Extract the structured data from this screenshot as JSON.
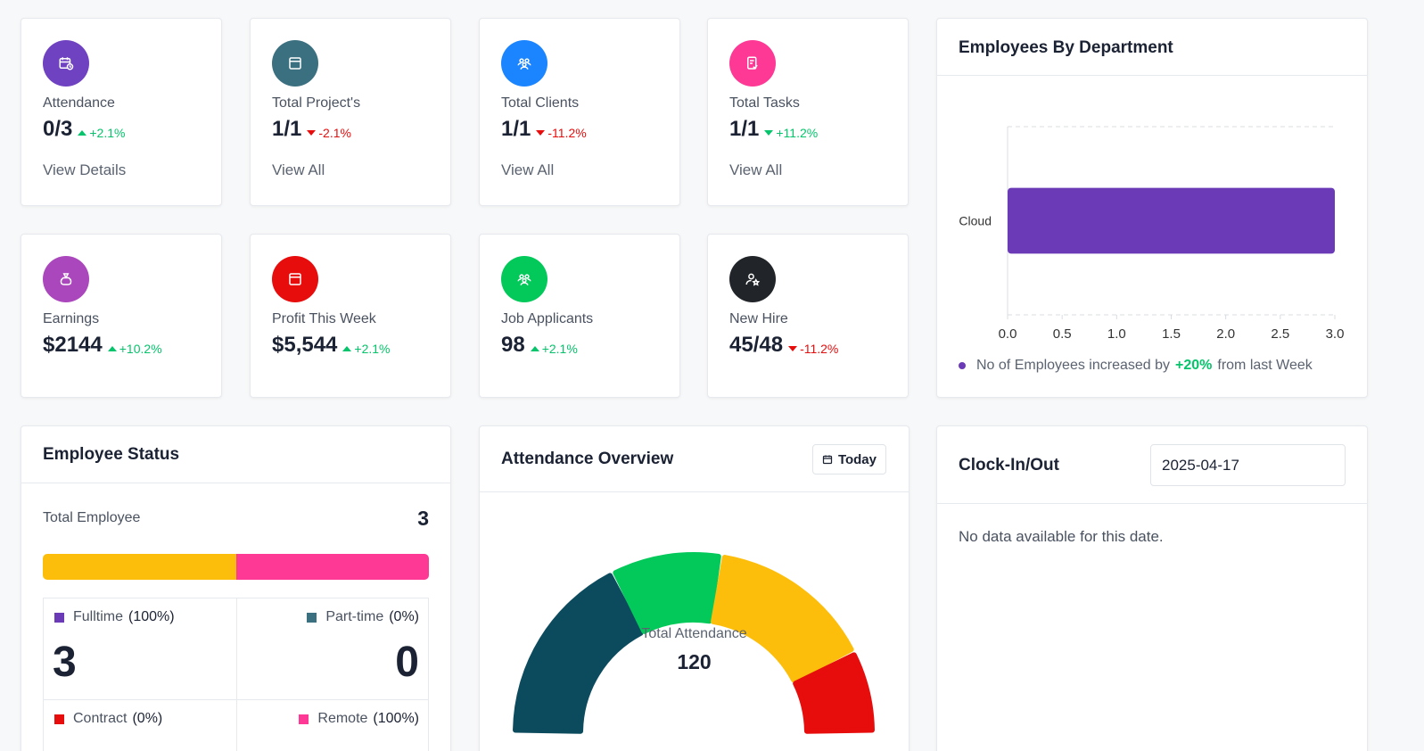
{
  "stats": [
    {
      "label": "Attendance",
      "value": "0/3",
      "change": "+2.1%",
      "link": "View Details"
    },
    {
      "label": "Total Project's",
      "value": "1/1",
      "change": "-2.1%",
      "link": "View All"
    },
    {
      "label": "Total Clients",
      "value": "1/1",
      "change": "-11.2%",
      "link": "View All"
    },
    {
      "label": "Total Tasks",
      "value": "1/1",
      "change": "+11.2%",
      "link": "View All"
    },
    {
      "label": "Earnings",
      "value": "$2144",
      "change": "+10.2%"
    },
    {
      "label": "Profit This Week",
      "value": "$5,544",
      "change": "+2.1%"
    },
    {
      "label": "Job Applicants",
      "value": "98",
      "change": "+2.1%"
    },
    {
      "label": "New Hire",
      "value": "45/48",
      "change": "-11.2%"
    }
  ],
  "icons": {
    "attendance": {
      "name": "calendar-clock-icon",
      "color": "#6f42c1"
    },
    "projects": {
      "name": "window-icon",
      "color": "#3b7080"
    },
    "clients": {
      "name": "users-group-icon",
      "color": "#1b84ff"
    },
    "tasks": {
      "name": "clipboard-check-icon",
      "color": "#fd3995"
    },
    "earnings": {
      "name": "money-bag-icon",
      "color": "#ab47bc"
    },
    "profit": {
      "name": "window-icon",
      "color": "#e70d0d"
    },
    "applicants": {
      "name": "users-group-icon",
      "color": "#03c95a"
    },
    "hire": {
      "name": "user-star-icon",
      "color": "#212529"
    }
  },
  "dept": {
    "title": "Employees By Department",
    "footer_prefix": "No of Employees increased by",
    "footer_value": "+20%",
    "footer_suffix": "from last Week"
  },
  "chart_data": {
    "type": "bar",
    "orientation": "horizontal",
    "categories": [
      "Cloud"
    ],
    "values": [
      3
    ],
    "xlim": [
      0,
      3
    ],
    "xticks": [
      "0.0",
      "0.5",
      "1.0",
      "1.5",
      "2.0",
      "2.5",
      "3.0"
    ],
    "bar_color": "#6a3ab7"
  },
  "status": {
    "title": "Employee Status",
    "total_label": "Total Employee",
    "total_value": "3",
    "segments": [
      {
        "share": 0.5,
        "color": "#fdbe0b"
      },
      {
        "share": 0.5,
        "color": "#fd3995"
      }
    ],
    "types": [
      {
        "label": "Fulltime",
        "pct": "(100%)",
        "value": "3",
        "color": "#6a3ab7"
      },
      {
        "label": "Part-time",
        "pct": "(0%)",
        "value": "0",
        "color": "#3b7080"
      },
      {
        "label": "Contract",
        "pct": "(0%)",
        "color": "#e70d0d"
      },
      {
        "label": "Remote",
        "pct": "(100%)",
        "color": "#fd3995"
      }
    ]
  },
  "overview": {
    "title": "Attendance Overview",
    "range_button": "Today",
    "total_label": "Total Attendance",
    "total_value": "120",
    "gauge_segments": [
      {
        "share": 0.35,
        "color": "#0c4b5e"
      },
      {
        "share": 0.2,
        "color": "#03c95a"
      },
      {
        "share": 0.3,
        "color": "#fdbe0b"
      },
      {
        "share": 0.15,
        "color": "#e70d0d"
      }
    ]
  },
  "clock": {
    "title": "Clock-In/Out",
    "date": "2025-04-17",
    "empty": "No data available for this date."
  }
}
